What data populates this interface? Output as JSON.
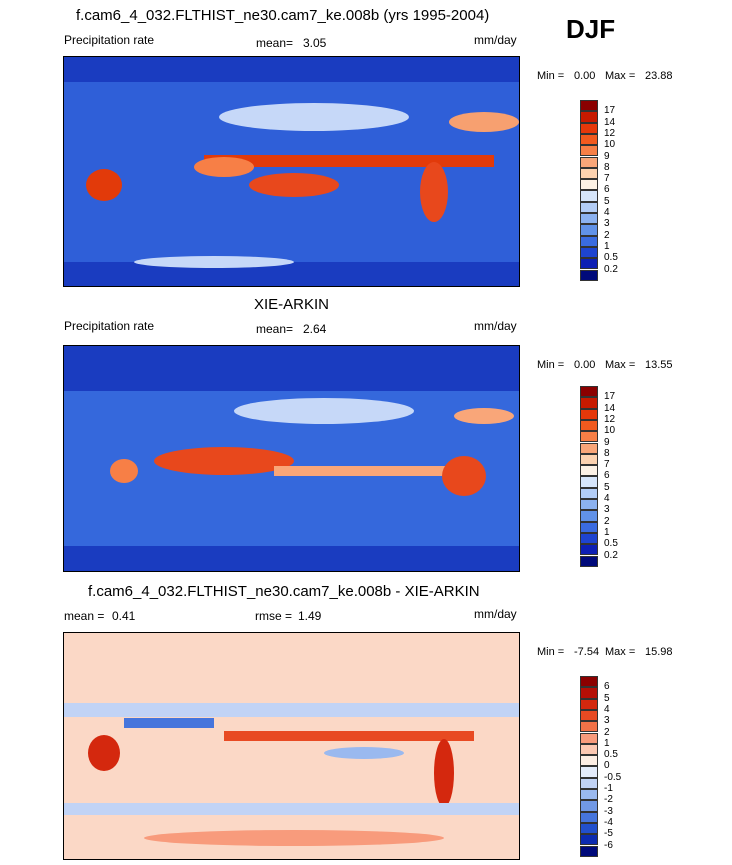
{
  "season": "DJF",
  "panels": [
    {
      "title": "f.cam6_4_032.FLTHIST_ne30.cam7_ke.008b (yrs 1995-2004)",
      "left_label": "Precipitation rate",
      "mean_label": "mean=",
      "mean_value": "3.05",
      "units": "mm/day",
      "min_label": "Min =",
      "min_value": "0.00",
      "max_label": "Max =",
      "max_value": "23.88",
      "levels": [
        "17",
        "14",
        "12",
        "10",
        "9",
        "8",
        "7",
        "6",
        "5",
        "4",
        "3",
        "2",
        "1",
        "0.5",
        "0.2"
      ],
      "colors": [
        "#8b0000",
        "#c81a00",
        "#e6380a",
        "#f25a1e",
        "#f77f46",
        "#f9a679",
        "#fcd2b0",
        "#fdf2e6",
        "#d7e6fb",
        "#b3cdf6",
        "#8cb2f0",
        "#6192e8",
        "#3a6be0",
        "#1e44d0",
        "#0d1fb4",
        "#000a7a"
      ]
    },
    {
      "title": "XIE-ARKIN",
      "left_label": "Precipitation rate",
      "mean_label": "mean=",
      "mean_value": "2.64",
      "units": "mm/day",
      "min_label": "Min =",
      "min_value": "0.00",
      "max_label": "Max =",
      "max_value": "13.55",
      "levels": [
        "17",
        "14",
        "12",
        "10",
        "9",
        "8",
        "7",
        "6",
        "5",
        "4",
        "3",
        "2",
        "1",
        "0.5",
        "0.2"
      ],
      "colors": [
        "#8b0000",
        "#c81a00",
        "#e6380a",
        "#f25a1e",
        "#f77f46",
        "#f9a679",
        "#fcd2b0",
        "#fdf2e6",
        "#d7e6fb",
        "#b3cdf6",
        "#8cb2f0",
        "#6192e8",
        "#3a6be0",
        "#1e44d0",
        "#0d1fb4",
        "#000a7a"
      ]
    },
    {
      "title": "f.cam6_4_032.FLTHIST_ne30.cam7_ke.008b - XIE-ARKIN",
      "left_label": "mean =",
      "mean_label": "",
      "mean_value": "0.41",
      "rmse_label": "rmse =",
      "rmse_value": "1.49",
      "units": "mm/day",
      "min_label": "Min =",
      "min_value": "-7.54",
      "max_label": "Max =",
      "max_value": "15.98",
      "levels": [
        "6",
        "5",
        "4",
        "3",
        "2",
        "1",
        "0.5",
        "0",
        "-0.5",
        "-1",
        "-2",
        "-3",
        "-4",
        "-5",
        "-6"
      ],
      "colors": [
        "#8b0000",
        "#b50f06",
        "#d4280e",
        "#e84a22",
        "#f27248",
        "#f89b7c",
        "#fcc8b2",
        "#fdeee4",
        "#e4ecfb",
        "#c1d3f5",
        "#9ab9ef",
        "#7199e6",
        "#4675dc",
        "#2250cc",
        "#0c2bb0",
        "#000a7a"
      ]
    }
  ]
}
